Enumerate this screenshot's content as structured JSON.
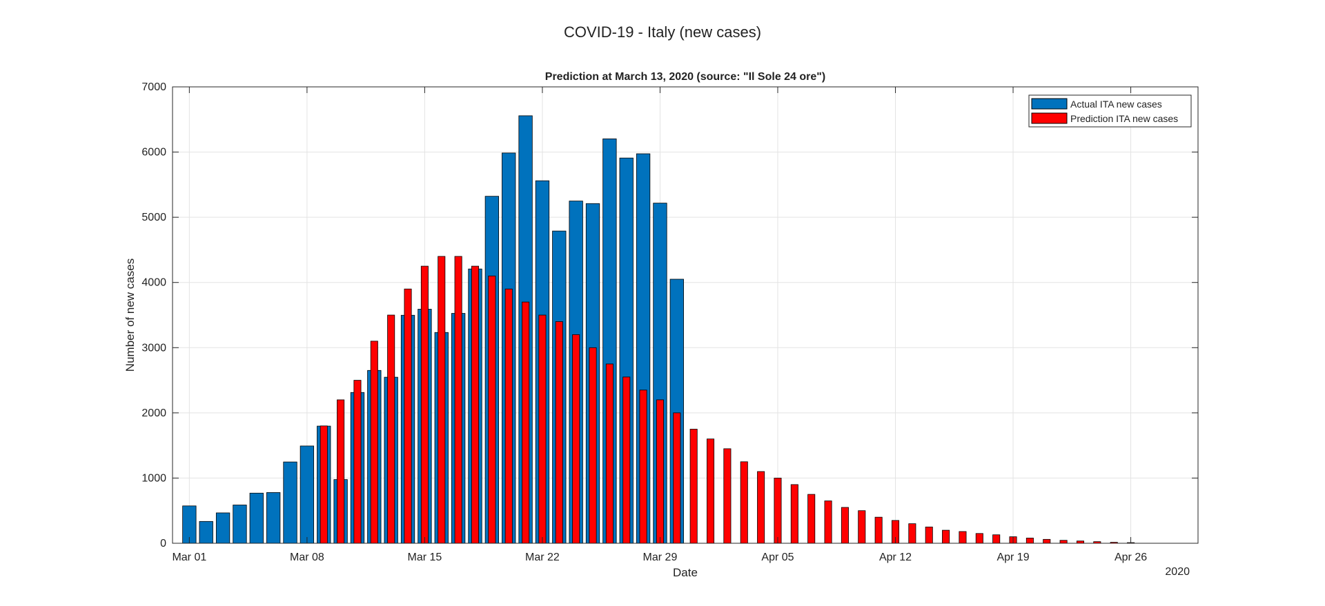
{
  "figure": {
    "suptitle": "COVID-19 - Italy (new cases)"
  },
  "chart_data": {
    "type": "bar",
    "title": "Prediction at March 13, 2020 (source: \"Il Sole 24 ore\")",
    "xlabel": "Date",
    "ylabel": "Number of new cases",
    "year_label": "2020",
    "ylim": [
      0,
      7000
    ],
    "yticks": [
      0,
      1000,
      2000,
      3000,
      4000,
      5000,
      6000,
      7000
    ],
    "xlim": [
      "2020-02-29",
      "2020-04-30"
    ],
    "xticks": [
      {
        "date": "2020-03-01",
        "label": "Mar 01"
      },
      {
        "date": "2020-03-08",
        "label": "Mar 08"
      },
      {
        "date": "2020-03-15",
        "label": "Mar 15"
      },
      {
        "date": "2020-03-22",
        "label": "Mar 22"
      },
      {
        "date": "2020-03-29",
        "label": "Mar 29"
      },
      {
        "date": "2020-04-05",
        "label": "Apr 05"
      },
      {
        "date": "2020-04-12",
        "label": "Apr 12"
      },
      {
        "date": "2020-04-19",
        "label": "Apr 19"
      },
      {
        "date": "2020-04-26",
        "label": "Apr 26"
      }
    ],
    "grid": true,
    "legend_position": "top-right",
    "series": [
      {
        "name": "Actual ITA new cases",
        "color": "#0072BD",
        "start_date": "2020-03-01",
        "values": [
          573,
          335,
          466,
          587,
          769,
          778,
          1247,
          1492,
          1797,
          977,
          2313,
          2651,
          2547,
          3497,
          3590,
          3233,
          3526,
          4207,
          5322,
          5986,
          6557,
          5560,
          4789,
          5249,
          5210,
          6203,
          5909,
          5974,
          5217,
          4050
        ]
      },
      {
        "name": "Prediction ITA new cases",
        "color": "#FF0000",
        "start_date": "2020-03-09",
        "values": [
          1800,
          2200,
          2500,
          3100,
          3500,
          3900,
          4250,
          4400,
          4400,
          4250,
          4100,
          3900,
          3700,
          3500,
          3400,
          3200,
          3000,
          2750,
          2550,
          2350,
          2200,
          2000,
          1750,
          1600,
          1450,
          1250,
          1100,
          1000,
          900,
          750,
          650,
          550,
          500,
          400,
          350,
          300,
          250,
          200,
          180,
          150,
          130,
          100,
          80,
          60,
          45,
          35,
          25,
          15,
          10
        ]
      }
    ]
  }
}
